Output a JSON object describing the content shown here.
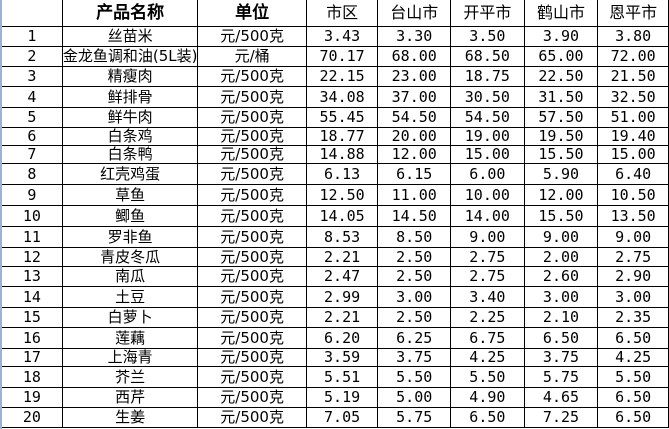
{
  "headers": [
    "",
    "产品名称",
    "单位",
    "市区",
    "台山市",
    "开平市",
    "鹤山市",
    "恩平市"
  ],
  "rows": [
    [
      "1",
      "丝苗米",
      "元/500克",
      "3.43",
      "3.30",
      "3.50",
      "3.90",
      "3.80"
    ],
    [
      "2",
      "金龙鱼调和油(5L装)",
      "元/桶",
      "70.17",
      "68.00",
      "68.50",
      "65.00",
      "72.00"
    ],
    [
      "3",
      "精瘦肉",
      "元/500克",
      "22.15",
      "23.00",
      "18.75",
      "22.50",
      "21.50"
    ],
    [
      "4",
      "鲜排骨",
      "元/500克",
      "34.08",
      "37.00",
      "30.50",
      "31.50",
      "32.50"
    ],
    [
      "5",
      "鲜牛肉",
      "元/500克",
      "55.45",
      "54.50",
      "54.50",
      "57.50",
      "51.00"
    ],
    [
      "6",
      "白条鸡",
      "元/500克",
      "18.77",
      "20.00",
      "19.00",
      "19.50",
      "19.40"
    ],
    [
      "7",
      "白条鸭",
      "元/500克",
      "14.88",
      "12.00",
      "15.00",
      "15.50",
      "15.00"
    ],
    [
      "8",
      "红壳鸡蛋",
      "元/500克",
      "6.13",
      "6.15",
      "6.00",
      "5.90",
      "6.40"
    ],
    [
      "9",
      "草鱼",
      "元/500克",
      "12.50",
      "11.00",
      "10.00",
      "12.00",
      "10.50"
    ],
    [
      "10",
      "鲫鱼",
      "元/500克",
      "14.05",
      "14.50",
      "14.00",
      "15.50",
      "13.50"
    ],
    [
      "11",
      "罗非鱼",
      "元/500克",
      "8.53",
      "8.50",
      "9.00",
      "9.00",
      "9.00"
    ],
    [
      "12",
      "青皮冬瓜",
      "元/500克",
      "2.21",
      "2.50",
      "2.75",
      "2.00",
      "2.75"
    ],
    [
      "13",
      "南瓜",
      "元/500克",
      "2.47",
      "2.50",
      "2.75",
      "2.60",
      "2.90"
    ],
    [
      "14",
      "土豆",
      "元/500克",
      "2.99",
      "3.00",
      "3.40",
      "3.00",
      "3.00"
    ],
    [
      "15",
      "白萝卜",
      "元/500克",
      "2.21",
      "2.50",
      "2.25",
      "2.10",
      "2.35"
    ],
    [
      "16",
      "莲藕",
      "元/500克",
      "6.20",
      "6.25",
      "6.75",
      "6.50",
      "6.50"
    ],
    [
      "17",
      "上海青",
      "元/500克",
      "3.59",
      "3.75",
      "4.25",
      "3.75",
      "4.25"
    ],
    [
      "18",
      "芥兰",
      "元/500克",
      "5.51",
      "5.50",
      "5.50",
      "5.75",
      "5.50"
    ],
    [
      "19",
      "西芹",
      "元/500克",
      "5.19",
      "5.00",
      "4.90",
      "4.65",
      "6.50"
    ],
    [
      "20",
      "生姜",
      "元/500克",
      "7.05",
      "5.75",
      "6.50",
      "7.25",
      "6.50"
    ]
  ]
}
